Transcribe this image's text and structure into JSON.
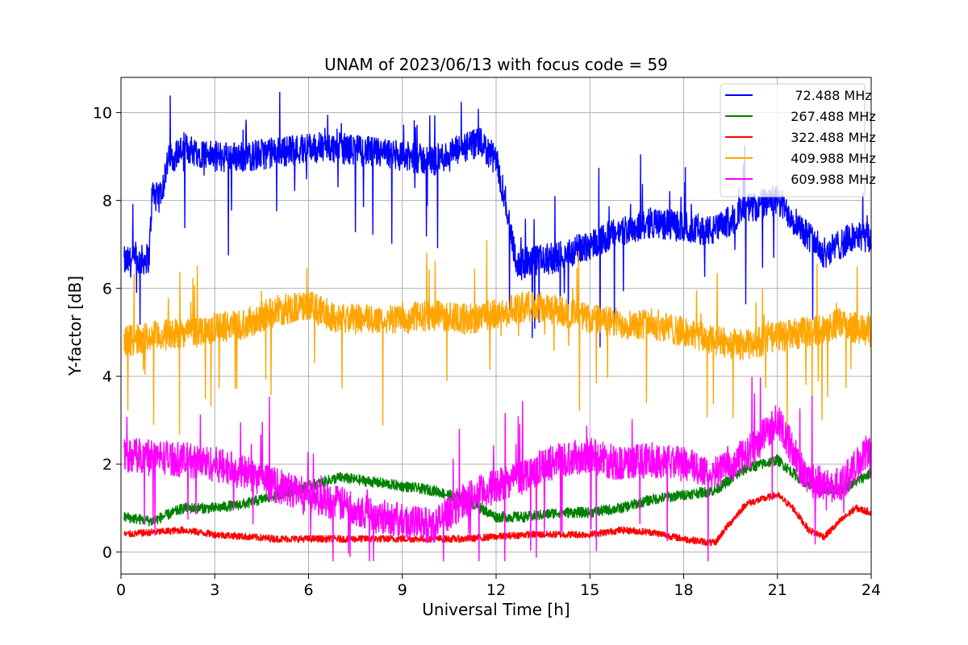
{
  "chart_data": {
    "type": "line",
    "title": "UNAM of 2023/06/13 with focus code = 59",
    "xlabel": "Universal Time [h]",
    "ylabel": "Y-factor [dB]",
    "xlim": [
      0,
      24
    ],
    "ylim": [
      -0.5,
      10.8
    ],
    "xticks": [
      0,
      3,
      6,
      9,
      12,
      15,
      18,
      21,
      24
    ],
    "yticks": [
      0,
      2,
      4,
      6,
      8,
      10
    ],
    "grid": true,
    "legend_position": "top-right",
    "series": [
      {
        "name": " 72.488 MHz",
        "color": "#0000ff",
        "noise": 0.35,
        "x": [
          0.1,
          0.5,
          0.9,
          1.0,
          1.2,
          1.5,
          2,
          3,
          4,
          5,
          6,
          7,
          8,
          9,
          10,
          11,
          11.5,
          12,
          12.3,
          12.6,
          12.7,
          13,
          14,
          15,
          16,
          17,
          18,
          19,
          20,
          21,
          22,
          22.5,
          23,
          23.5,
          24
        ],
        "y": [
          6.6,
          6.6,
          6.7,
          8.2,
          8.0,
          8.9,
          9.2,
          9.0,
          9.0,
          9.1,
          9.2,
          9.2,
          9.1,
          9.0,
          8.9,
          9.2,
          9.3,
          8.9,
          8.0,
          6.8,
          6.5,
          6.6,
          6.7,
          7.0,
          7.3,
          7.5,
          7.4,
          7.3,
          7.8,
          8.0,
          7.2,
          6.8,
          7.0,
          7.2,
          7.1
        ]
      },
      {
        "name": "267.488 MHz",
        "color": "#008000",
        "noise": 0.12,
        "x": [
          0.1,
          1,
          2,
          3,
          4,
          5,
          6,
          7,
          8,
          9,
          10,
          11,
          12,
          13,
          14,
          15,
          16,
          17,
          18,
          19,
          20,
          21,
          22,
          23,
          24
        ],
        "y": [
          0.8,
          0.7,
          1.0,
          1.0,
          1.1,
          1.3,
          1.5,
          1.7,
          1.6,
          1.5,
          1.4,
          1.2,
          0.8,
          0.8,
          0.9,
          0.9,
          1.0,
          1.2,
          1.3,
          1.4,
          1.9,
          2.1,
          1.5,
          1.4,
          1.8
        ]
      },
      {
        "name": "322.488 MHz",
        "color": "#ff0000",
        "noise": 0.08,
        "x": [
          0.1,
          1,
          2,
          3,
          4,
          5,
          6,
          7,
          8,
          9,
          10,
          11,
          12,
          13,
          14,
          15,
          16,
          17,
          18,
          19,
          19.3,
          20,
          21,
          21.5,
          22,
          22.5,
          23,
          23.5,
          24
        ],
        "y": [
          0.4,
          0.45,
          0.5,
          0.4,
          0.35,
          0.3,
          0.3,
          0.3,
          0.3,
          0.3,
          0.3,
          0.3,
          0.35,
          0.4,
          0.4,
          0.4,
          0.5,
          0.45,
          0.3,
          0.2,
          0.5,
          1.1,
          1.3,
          1.0,
          0.5,
          0.35,
          0.7,
          1.0,
          0.9
        ]
      },
      {
        "name": "409.988 MHz",
        "color": "#ffa500",
        "noise": 0.35,
        "x": [
          0.1,
          1,
          2,
          3,
          4,
          5,
          6,
          7,
          8,
          9,
          10,
          11,
          12,
          13,
          14,
          15,
          16,
          17,
          18,
          19,
          20,
          21,
          22,
          23,
          24
        ],
        "y": [
          4.8,
          4.9,
          5.0,
          5.1,
          5.2,
          5.5,
          5.6,
          5.3,
          5.3,
          5.3,
          5.4,
          5.3,
          5.4,
          5.6,
          5.5,
          5.3,
          5.2,
          5.2,
          5.0,
          4.8,
          4.7,
          4.9,
          5.0,
          5.2,
          5.0
        ]
      },
      {
        "name": "609.988 MHz",
        "color": "#ff00ff",
        "noise": 0.4,
        "x": [
          0.1,
          1,
          2,
          3,
          4,
          5,
          6,
          7,
          8,
          9,
          10,
          11,
          12,
          13,
          14,
          15,
          16,
          17,
          18,
          19,
          20,
          21,
          22,
          23,
          24
        ],
        "y": [
          2.2,
          2.2,
          2.1,
          2.0,
          1.8,
          1.5,
          1.3,
          1.1,
          0.9,
          0.7,
          0.6,
          1.2,
          1.5,
          1.8,
          2.1,
          2.2,
          2.0,
          2.1,
          2.0,
          1.8,
          2.2,
          3.0,
          1.6,
          1.5,
          2.4
        ]
      }
    ]
  }
}
